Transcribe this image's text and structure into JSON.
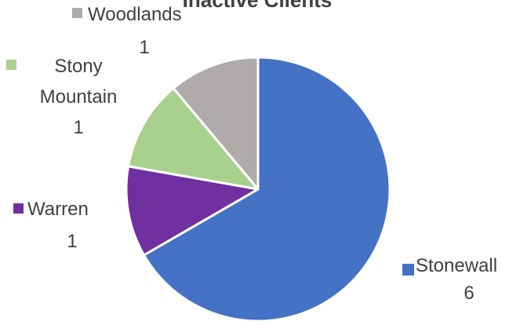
{
  "chart_data": {
    "type": "pie",
    "title": "Inactive Clients",
    "slices": [
      {
        "label": "Stonewall",
        "value": 6,
        "value_label": "6",
        "color": "#4472C4"
      },
      {
        "label": "Warren",
        "value": 1,
        "value_label": "1",
        "color": "#7030A0"
      },
      {
        "label": "Stony Mountain",
        "label_lines": [
          "Stony",
          "Mountain"
        ],
        "value": 1,
        "value_label": "1",
        "color": "#A9D18E"
      },
      {
        "label": "Woodlands",
        "value": 1,
        "value_label": "1",
        "color": "#AFABAB"
      }
    ]
  }
}
